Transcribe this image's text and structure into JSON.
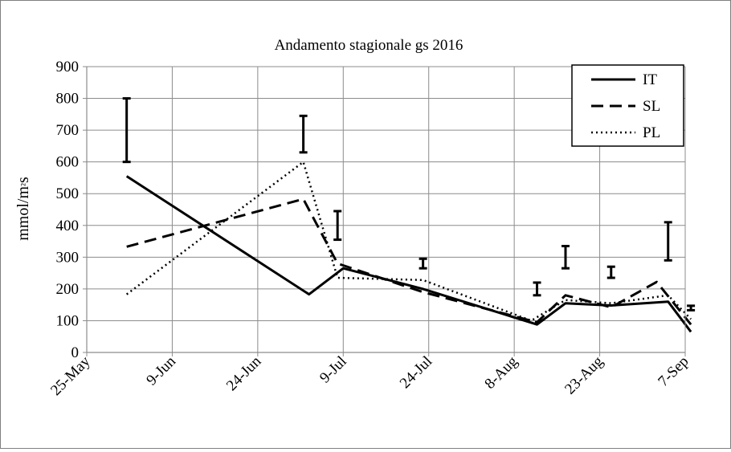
{
  "chart_data": {
    "type": "line",
    "title": "Andamento stagionale gs 2016",
    "xlabel": "",
    "ylabel": "mmol/m²s",
    "ylim": [
      0,
      900
    ],
    "yticks": [
      0,
      100,
      200,
      300,
      400,
      500,
      600,
      700,
      800,
      900
    ],
    "xlim": [
      "2016-05-25",
      "2016-09-07"
    ],
    "xtick_labels": [
      "25-May",
      "9-Jun",
      "24-Jun",
      "9-Jul",
      "24-Jul",
      "8-Aug",
      "23-Aug",
      "7-Sep"
    ],
    "xtick_dates": [
      "2016-05-25",
      "2016-06-09",
      "2016-06-24",
      "2016-07-09",
      "2016-07-24",
      "2016-08-08",
      "2016-08-23",
      "2016-09-07"
    ],
    "grid": true,
    "legend_position": "top-right",
    "series": [
      {
        "name": "IT",
        "dash": "solid",
        "points": [
          {
            "x": "2016-06-01",
            "y": 555
          },
          {
            "x": "2016-07-03",
            "y": 183
          },
          {
            "x": "2016-07-09",
            "y": 265
          },
          {
            "x": "2016-07-23",
            "y": 200
          },
          {
            "x": "2016-08-12",
            "y": 88
          },
          {
            "x": "2016-08-17",
            "y": 155
          },
          {
            "x": "2016-08-25",
            "y": 148
          },
          {
            "x": "2016-09-04",
            "y": 160
          },
          {
            "x": "2016-09-08",
            "y": 65
          }
        ]
      },
      {
        "name": "SL",
        "dash": "dashed",
        "points": [
          {
            "x": "2016-06-01",
            "y": 333
          },
          {
            "x": "2016-07-02",
            "y": 483
          },
          {
            "x": "2016-07-08",
            "y": 280
          },
          {
            "x": "2016-07-23",
            "y": 190
          },
          {
            "x": "2016-08-12",
            "y": 95
          },
          {
            "x": "2016-08-17",
            "y": 180
          },
          {
            "x": "2016-08-25",
            "y": 142
          },
          {
            "x": "2016-09-02",
            "y": 222
          },
          {
            "x": "2016-09-08",
            "y": 88
          }
        ]
      },
      {
        "name": "PL",
        "dash": "dotted",
        "points": [
          {
            "x": "2016-06-01",
            "y": 183
          },
          {
            "x": "2016-07-02",
            "y": 600
          },
          {
            "x": "2016-07-08",
            "y": 235
          },
          {
            "x": "2016-07-23",
            "y": 228
          },
          {
            "x": "2016-08-11",
            "y": 100
          },
          {
            "x": "2016-08-17",
            "y": 165
          },
          {
            "x": "2016-08-25",
            "y": 155
          },
          {
            "x": "2016-09-04",
            "y": 180
          },
          {
            "x": "2016-09-08",
            "y": 105
          }
        ]
      }
    ],
    "error_bars": [
      {
        "x": "2016-06-01",
        "low": 600,
        "high": 800
      },
      {
        "x": "2016-07-02",
        "low": 630,
        "high": 745
      },
      {
        "x": "2016-07-08",
        "low": 355,
        "high": 445
      },
      {
        "x": "2016-07-23",
        "low": 265,
        "high": 295
      },
      {
        "x": "2016-08-12",
        "low": 180,
        "high": 220
      },
      {
        "x": "2016-08-17",
        "low": 265,
        "high": 335
      },
      {
        "x": "2016-08-25",
        "low": 235,
        "high": 270
      },
      {
        "x": "2016-09-04",
        "low": 290,
        "high": 410
      },
      {
        "x": "2016-09-08",
        "low": 133,
        "high": 147
      }
    ]
  }
}
